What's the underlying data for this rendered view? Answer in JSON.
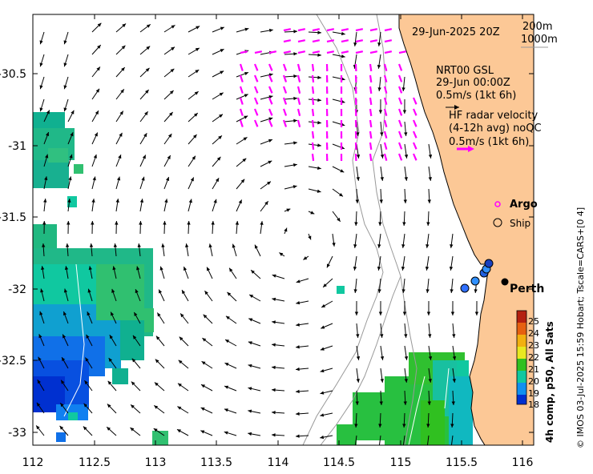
{
  "title": {
    "date_label": "29-Jun-2025 20Z"
  },
  "contours": {
    "labels": [
      "200m",
      "1000m"
    ]
  },
  "gsl": {
    "title": "NRT00 GSL",
    "time": "29-Jun 00:00Z",
    "scale": "0.5m/s (1kt 6h)"
  },
  "hf_radar": {
    "line1": "HF radar velocity",
    "line2": "(4-12h avg) noQC",
    "scale": "0.5m/s (1kt 6h)",
    "color": "#ff00ff"
  },
  "legend": {
    "argo": "Argo",
    "ship": "Ship"
  },
  "city": {
    "name": "Perth"
  },
  "colorbar": {
    "title": "4h comp, p50, All Sats",
    "ticks": [
      "25",
      "24",
      "23",
      "22",
      "21",
      "20",
      "19",
      "18"
    ],
    "colors": [
      "#b42010",
      "#e66010",
      "#f2b010",
      "#e8e820",
      "#30c020",
      "#10c8a0",
      "#1090f0",
      "#0030d0"
    ]
  },
  "credit": "© IMOS 03-Jul-2025 15:59 Hobart; Tscale=CARS+[0 4]",
  "map_data": {
    "x_ticks": [
      "112",
      "112.5",
      "113",
      "113.5",
      "114",
      "114.5",
      "115",
      "115.5",
      "116"
    ],
    "y_ticks": [
      "-30.5",
      "-31",
      "-31.5",
      "-32",
      "-32.5",
      "-33"
    ],
    "lon_range": [
      112,
      116.2
    ],
    "lat_range": [
      -33.1,
      -30.1
    ],
    "land_color": "#fcc896",
    "eddy_center": [
      113.7,
      -31.7
    ]
  }
}
